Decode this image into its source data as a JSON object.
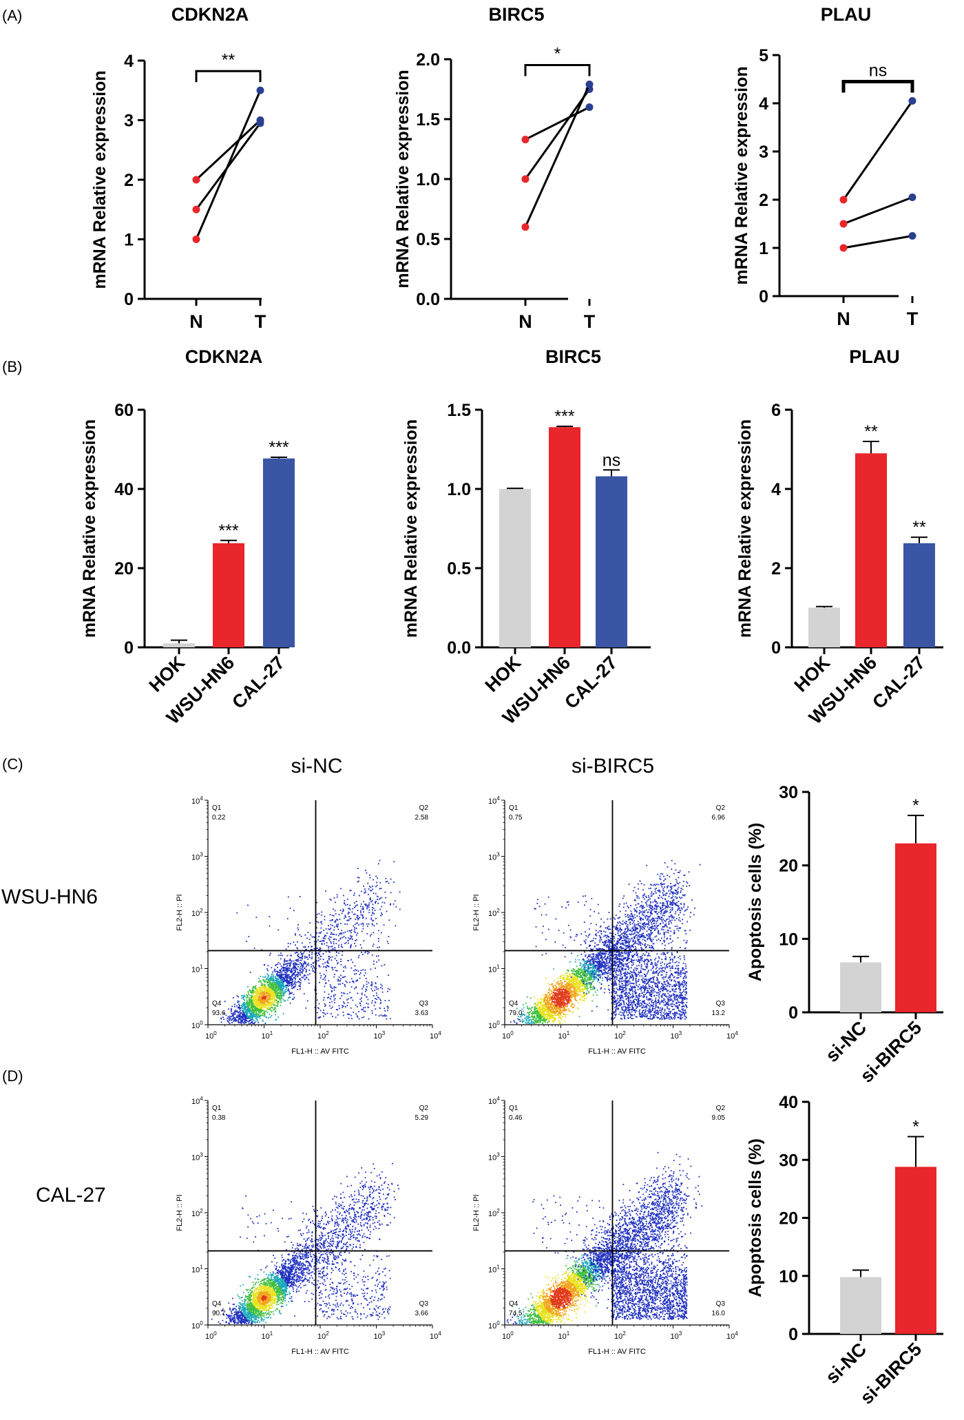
{
  "panel_labels": [
    "(A)",
    "(B)",
    "(C)",
    "(D)"
  ],
  "row_c": {
    "col1": "si-NC",
    "col2": "si-BIRC5",
    "row1": "WSU-HN6",
    "row2": "CAL-27"
  },
  "chart_data": [
    {
      "id": "a1",
      "type": "line",
      "title": "CDKN2A",
      "ylabel": "mRNA Relative expression",
      "categories": [
        "N",
        "T"
      ],
      "ylim": [
        0,
        4
      ],
      "yticks": [
        0,
        1,
        2,
        3,
        4
      ],
      "yticklabels": [
        "0",
        "1",
        "2",
        "3",
        "4"
      ],
      "series": [
        {
          "name": "pair1",
          "values": [
            2.0,
            3.0
          ]
        },
        {
          "name": "pair2",
          "values": [
            1.5,
            2.95
          ]
        },
        {
          "name": "pair3",
          "values": [
            1.0,
            3.5
          ]
        }
      ],
      "significance": "**",
      "bracket": "thin"
    },
    {
      "id": "a2",
      "type": "line",
      "title": "BIRC5",
      "ylabel": "mRNA Relative expression",
      "categories": [
        "N",
        "T"
      ],
      "ylim": [
        0,
        2
      ],
      "yticks": [
        0,
        0.5,
        1,
        1.5,
        2
      ],
      "yticklabels": [
        "0.0",
        "0.5",
        "1.0",
        "1.5",
        "2.0"
      ],
      "series": [
        {
          "name": "pair1",
          "values": [
            1.33,
            1.6
          ]
        },
        {
          "name": "pair2",
          "values": [
            1.0,
            1.75
          ]
        },
        {
          "name": "pair3",
          "values": [
            0.6,
            1.79
          ]
        }
      ],
      "significance": "*",
      "bracket": "thin"
    },
    {
      "id": "a3",
      "type": "line",
      "title": "PLAU",
      "ylabel": "mRNA Relative expression",
      "categories": [
        "N",
        "T"
      ],
      "ylim": [
        0,
        5
      ],
      "yticks": [
        0,
        1,
        2,
        3,
        4,
        5
      ],
      "yticklabels": [
        "0",
        "1",
        "2",
        "3",
        "4",
        "5"
      ],
      "series": [
        {
          "name": "pair1",
          "values": [
            2.0,
            4.05
          ]
        },
        {
          "name": "pair2",
          "values": [
            1.5,
            2.05
          ]
        },
        {
          "name": "pair3",
          "values": [
            1.0,
            1.25
          ]
        }
      ],
      "significance": "ns",
      "bracket": "thick"
    },
    {
      "id": "b1",
      "type": "bar",
      "title": "CDKN2A",
      "ylabel": "mRNA Relative expression",
      "categories": [
        "HOK",
        "WSU-HN6",
        "CAL-27"
      ],
      "values": [
        1.0,
        26.3,
        47.7
      ],
      "errors": [
        0.8,
        0.7,
        0.3
      ],
      "labels": [
        "",
        "***",
        "***"
      ],
      "ylim": [
        0,
        60
      ],
      "yticks": [
        0,
        20,
        40,
        60
      ],
      "yticklabels": [
        "0",
        "20",
        "40",
        "60"
      ],
      "colors": [
        "#d3d3d3",
        "#e8262b",
        "#3a55a4"
      ]
    },
    {
      "id": "b2",
      "type": "bar",
      "title": "BIRC5",
      "ylabel": "mRNA Relative expression",
      "categories": [
        "HOK",
        "WSU-HN6",
        "CAL-27"
      ],
      "values": [
        1.0,
        1.39,
        1.08
      ],
      "errors": [
        0.004,
        0.005,
        0.04
      ],
      "labels": [
        "",
        "***",
        "ns"
      ],
      "ylim": [
        0,
        1.5
      ],
      "yticks": [
        0,
        0.5,
        1,
        1.5
      ],
      "yticklabels": [
        "0.0",
        "0.5",
        "1.0",
        "1.5"
      ],
      "colors": [
        "#d3d3d3",
        "#e8262b",
        "#3a55a4"
      ]
    },
    {
      "id": "b3",
      "type": "bar",
      "title": "PLAU",
      "ylabel": "mRNA Relative expression",
      "categories": [
        "HOK",
        "WSU-HN6",
        "CAL-27"
      ],
      "values": [
        1.0,
        4.9,
        2.63
      ],
      "errors": [
        0.03,
        0.3,
        0.15
      ],
      "labels": [
        "",
        "**",
        "**"
      ],
      "ylim": [
        0,
        6
      ],
      "yticks": [
        0,
        2,
        4,
        6
      ],
      "yticklabels": [
        "0",
        "2",
        "4",
        "6"
      ],
      "colors": [
        "#d3d3d3",
        "#e8262b",
        "#3a55a4"
      ]
    },
    {
      "id": "c3",
      "type": "bar",
      "title": "",
      "ylabel": "Apoptosis cells (%)",
      "categories": [
        "si-NC",
        "si-BIRC5"
      ],
      "values": [
        6.8,
        23.0
      ],
      "errors": [
        0.8,
        3.8
      ],
      "labels": [
        "",
        "*"
      ],
      "ylim": [
        0,
        30
      ],
      "yticks": [
        0,
        10,
        20,
        30
      ],
      "yticklabels": [
        "0",
        "10",
        "20",
        "30"
      ],
      "colors": [
        "#d3d3d3",
        "#e8262b"
      ]
    },
    {
      "id": "d3",
      "type": "bar",
      "title": "",
      "ylabel": "Apoptosis cells (%)",
      "categories": [
        "si-NC",
        "si-BIRC5"
      ],
      "values": [
        9.8,
        28.8
      ],
      "errors": [
        1.2,
        5.2
      ],
      "labels": [
        "",
        "*"
      ],
      "ylim": [
        0,
        40
      ],
      "yticks": [
        0,
        10,
        20,
        30,
        40
      ],
      "yticklabels": [
        "0",
        "10",
        "20",
        "30",
        "40"
      ],
      "colors": [
        "#d3d3d3",
        "#e8262b"
      ]
    },
    {
      "id": "c1",
      "type": "scatter",
      "subtype": "flow-cytometry",
      "xlabel": "FL1-H :: AV FITC",
      "ylabel": "FL2-H :: PI",
      "tick_exponents": [
        "0",
        "1",
        "2",
        "3",
        "4"
      ],
      "quadrants": {
        "Q1": "0.22",
        "Q2": "2.58",
        "Q3": "3.63",
        "Q4": "93.6"
      }
    },
    {
      "id": "c2",
      "type": "scatter",
      "subtype": "flow-cytometry",
      "xlabel": "FL1-H :: AV FITC",
      "ylabel": "FL2-H :: PI",
      "tick_exponents": [
        "0",
        "1",
        "2",
        "3",
        "4"
      ],
      "quadrants": {
        "Q1": "0.75",
        "Q2": "6.96",
        "Q3": "13.2",
        "Q4": "79.0"
      }
    },
    {
      "id": "d1",
      "type": "scatter",
      "subtype": "flow-cytometry",
      "xlabel": "FL1-H :: AV FITC",
      "ylabel": "FL2-H :: PI",
      "tick_exponents": [
        "0",
        "1",
        "2",
        "3",
        "4"
      ],
      "quadrants": {
        "Q1": "0.38",
        "Q2": "5.29",
        "Q3": "3.66",
        "Q4": "90.7"
      }
    },
    {
      "id": "d2",
      "type": "scatter",
      "subtype": "flow-cytometry",
      "xlabel": "FL1-H :: AV FITC",
      "ylabel": "FL2-H :: PI",
      "tick_exponents": [
        "0",
        "1",
        "2",
        "3",
        "4"
      ],
      "quadrants": {
        "Q1": "0.46",
        "Q2": "9.05",
        "Q3": "16.0",
        "Q4": "74.5"
      }
    }
  ],
  "colors": {
    "normal_point": "#e8262b",
    "tumor_point": "#2a3f8f",
    "scatter_blue": "#1e2fbf"
  }
}
